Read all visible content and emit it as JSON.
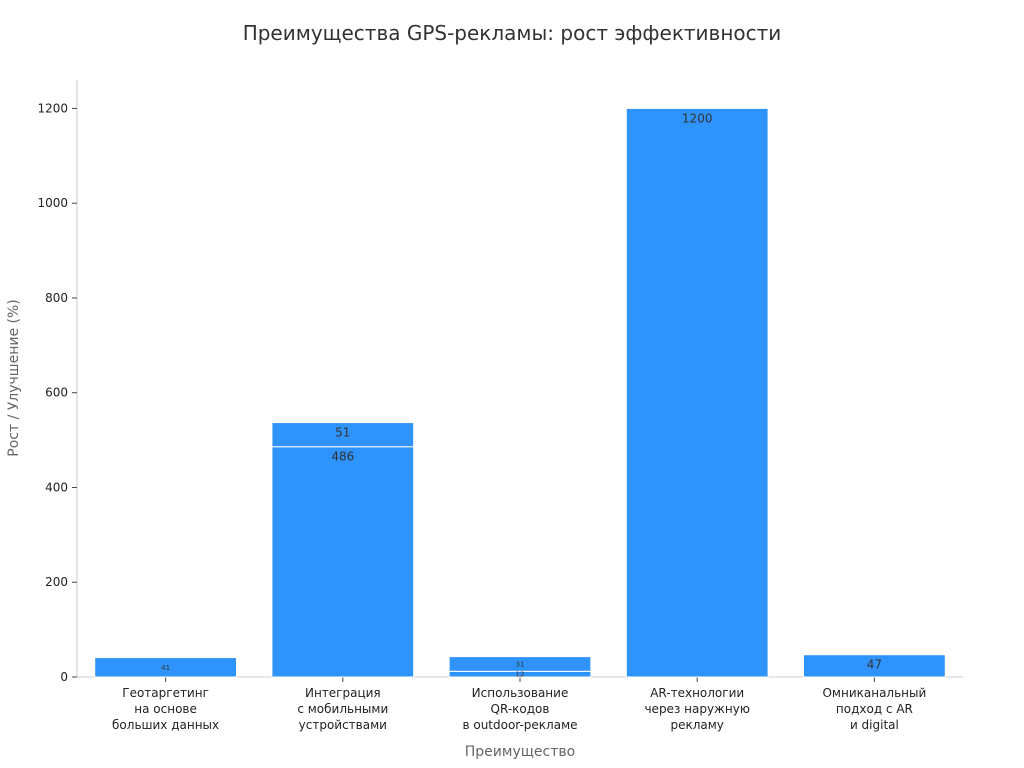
{
  "chart_data": {
    "type": "bar",
    "stacked": true,
    "title": "Преимущества GPS-рекламы: рост эффективности",
    "xlabel": "Преимущество",
    "ylabel": "Рост / Улучшение (%)",
    "ylim": [
      0,
      1260
    ],
    "yticks": [
      0,
      200,
      400,
      600,
      800,
      1000,
      1200
    ],
    "bar_color": "#2e93fa",
    "categories": [
      [
        "Геотаргетинг",
        "на основе",
        "больших данных"
      ],
      [
        "Интеграция",
        "с мобильными",
        "устройствами"
      ],
      [
        "Использование",
        "QR-кодов",
        "в outdoor-рекламе"
      ],
      [
        "AR-технологии",
        "через наружную",
        "рекламу"
      ],
      [
        "Омниканальный",
        "подход с AR",
        "и digital"
      ]
    ],
    "stacks": [
      [
        41
      ],
      [
        486,
        51
      ],
      [
        12,
        31
      ],
      [
        1200
      ],
      [
        47
      ]
    ],
    "segment_labels": [
      [
        "41"
      ],
      [
        "486",
        "51"
      ],
      [
        "12",
        "31"
      ],
      [
        "1200"
      ],
      [
        "47"
      ]
    ]
  }
}
